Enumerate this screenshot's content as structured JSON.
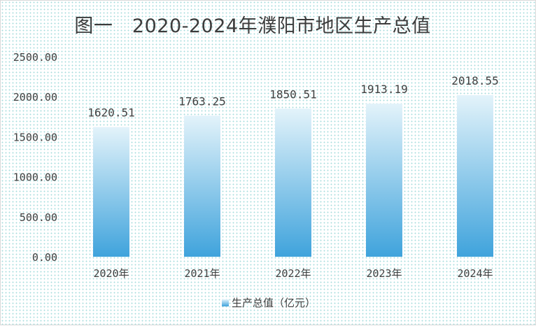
{
  "title": "图一　2020-2024年濮阳市地区生产总值",
  "legend": {
    "label": "生产总值（亿元）"
  },
  "chart_data": {
    "type": "bar",
    "title": "图一　2020-2024年濮阳市地区生产总值",
    "categories": [
      "2020年",
      "2021年",
      "2022年",
      "2023年",
      "2024年"
    ],
    "series": [
      {
        "name": "生产总值（亿元）",
        "values": [
          1620.51,
          1763.25,
          1850.51,
          1913.19,
          2018.55
        ]
      }
    ],
    "data_labels": [
      "1620.51",
      "1763.25",
      "1850.51",
      "1913.19",
      "2018.55"
    ],
    "y_ticks": [
      "0.00",
      "500.00",
      "1000.00",
      "1500.00",
      "2000.00",
      "2500.00"
    ],
    "ylim": [
      0,
      2500
    ],
    "xlabel": "",
    "ylabel": "",
    "grid": false,
    "legend_position": "bottom",
    "colors": {
      "bar_top": "#e3f3fa",
      "bar_bottom": "#3fa3dc",
      "text": "#404040"
    }
  }
}
